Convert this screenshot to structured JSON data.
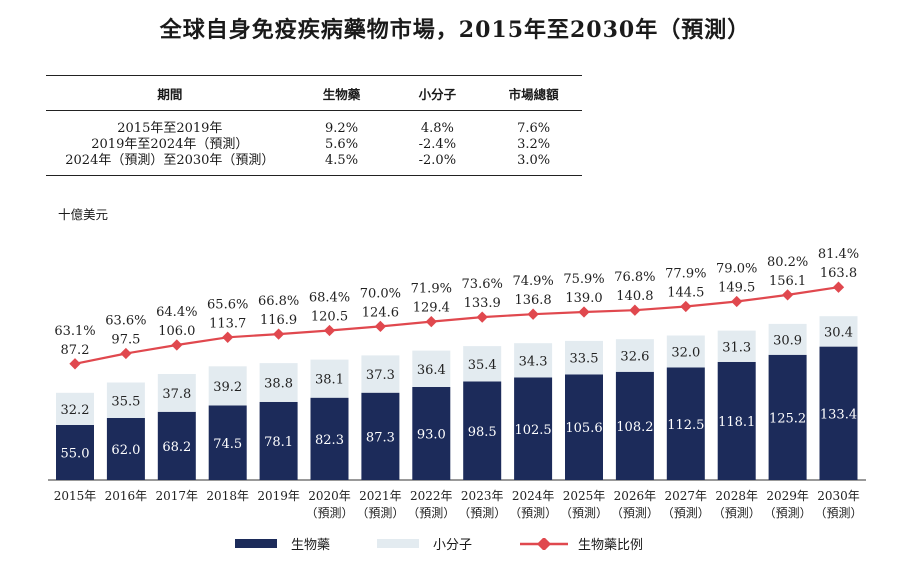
{
  "title": "全球自身免疫疾病藥物市場，2015年至2030年（預測）",
  "table": {
    "headers": [
      "期間",
      "生物藥",
      "小分子",
      "市場總額"
    ],
    "rows": [
      [
        "2015年至2019年",
        "9.2%",
        "4.8%",
        "7.6%"
      ],
      [
        "2019年至2024年（預測）",
        "5.6%",
        "-2.4%",
        "3.2%"
      ],
      [
        "2024年（預測）至2030年（預測）",
        "4.5%",
        "-2.0%",
        "3.0%"
      ]
    ]
  },
  "unit_label": "十億美元",
  "legend": {
    "bio": "生物藥",
    "small": "小分子",
    "ratio": "生物藥比例"
  },
  "colors": {
    "bio": "#1c2b5a",
    "small": "#e3ebf0",
    "ratio": "#e0484e"
  },
  "chart_data": {
    "type": "bar",
    "stacked": true,
    "categories": [
      [
        "2015年"
      ],
      [
        "2016年"
      ],
      [
        "2017年"
      ],
      [
        "2018年"
      ],
      [
        "2019年"
      ],
      [
        "2020年",
        "（預測）"
      ],
      [
        "2021年",
        "（預測）"
      ],
      [
        "2022年",
        "（預測）"
      ],
      [
        "2023年",
        "（預測）"
      ],
      [
        "2024年",
        "（預測）"
      ],
      [
        "2025年",
        "（預測）"
      ],
      [
        "2026年",
        "（預測）"
      ],
      [
        "2027年",
        "（預測）"
      ],
      [
        "2028年",
        "（預測）"
      ],
      [
        "2029年",
        "（預測）"
      ],
      [
        "2030年",
        "（預測）"
      ]
    ],
    "series": [
      {
        "name": "生物藥",
        "values": [
          55.0,
          62.0,
          68.2,
          74.5,
          78.1,
          82.3,
          87.3,
          93.0,
          98.5,
          102.5,
          105.6,
          108.2,
          112.5,
          118.1,
          125.2,
          133.4
        ]
      },
      {
        "name": "小分子",
        "values": [
          32.2,
          35.5,
          37.8,
          39.2,
          38.8,
          38.1,
          37.3,
          36.4,
          35.4,
          34.3,
          33.5,
          32.6,
          32.0,
          31.3,
          30.9,
          30.4
        ]
      }
    ],
    "totals": [
      87.2,
      97.5,
      106.0,
      113.7,
      116.9,
      120.5,
      124.6,
      129.4,
      133.9,
      136.8,
      139.0,
      140.8,
      144.5,
      149.5,
      156.1,
      163.8
    ],
    "ratio": {
      "name": "生物藥比例",
      "values": [
        "63.1%",
        "63.6%",
        "64.4%",
        "65.6%",
        "66.8%",
        "68.4%",
        "70.0%",
        "71.9%",
        "73.6%",
        "74.9%",
        "75.9%",
        "76.8%",
        "77.9%",
        "79.0%",
        "80.2%",
        "81.4%"
      ]
    },
    "ylim": [
      0,
      175
    ]
  }
}
